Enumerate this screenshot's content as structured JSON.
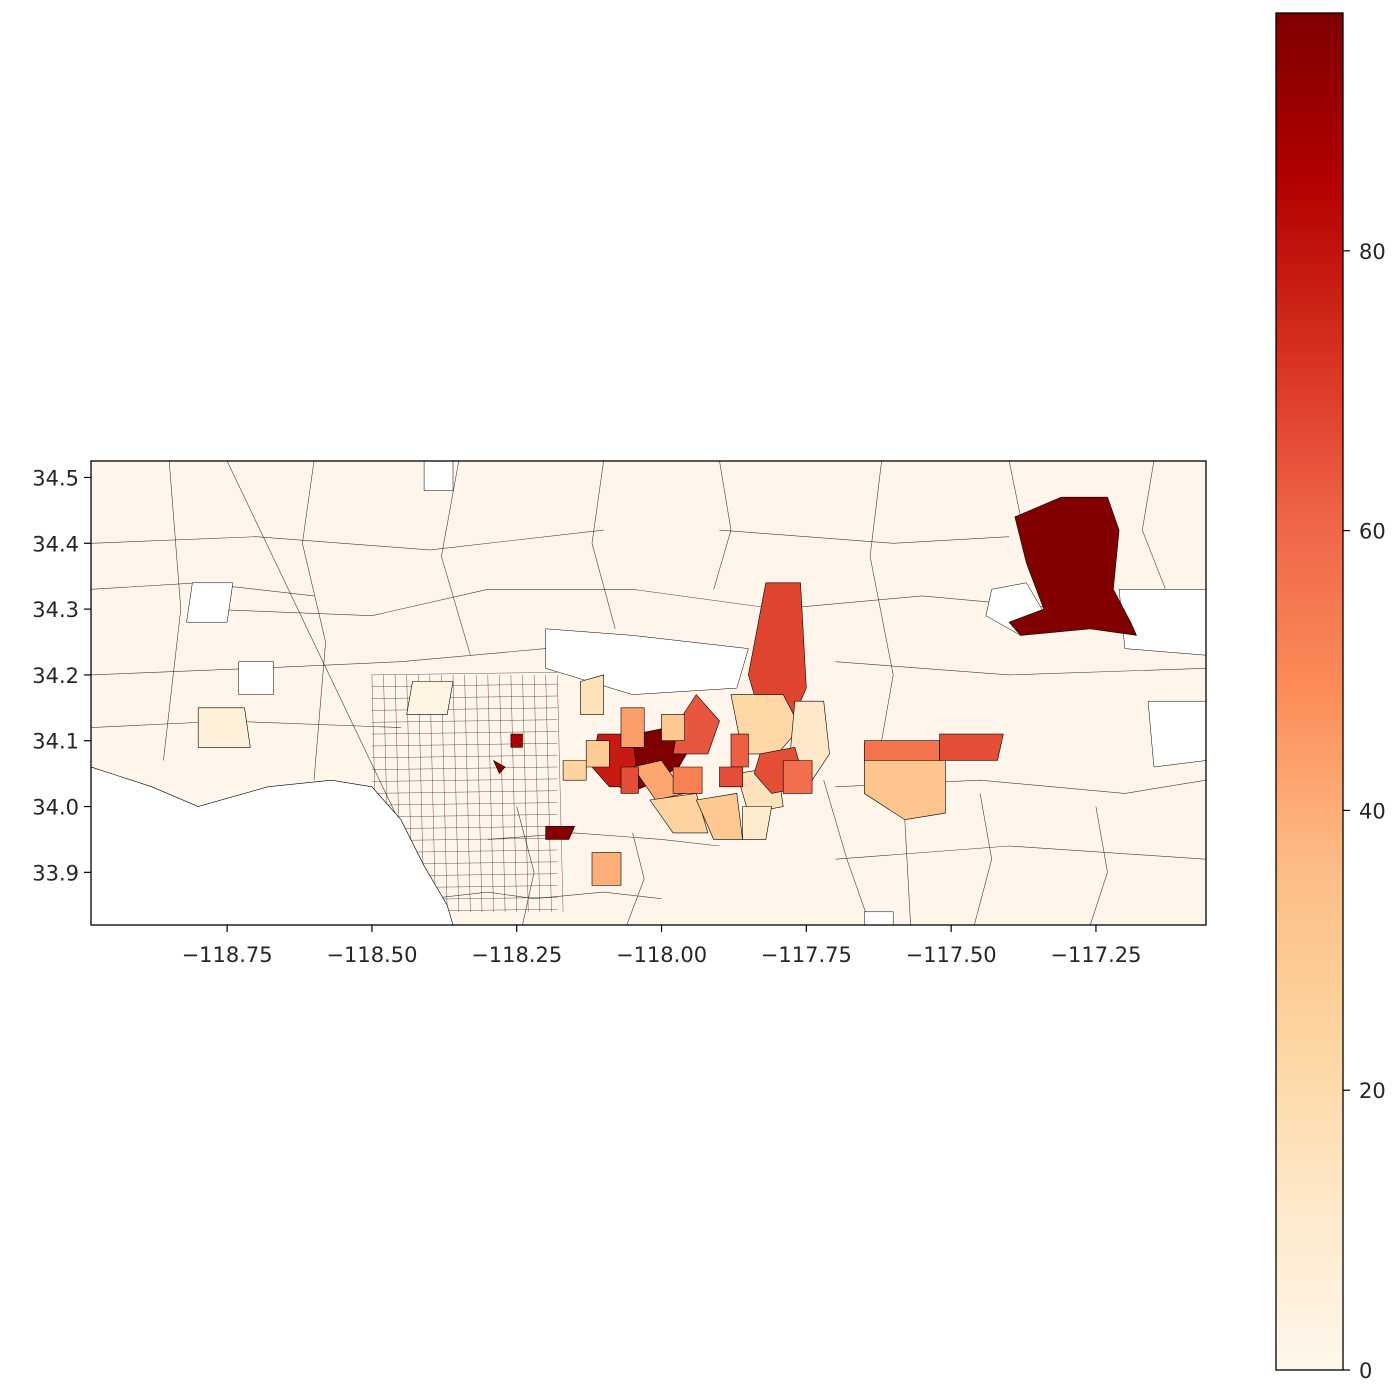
{
  "chart_data": {
    "type": "choropleth",
    "colormap": "OrRd",
    "basemap_color": "#fff5eb",
    "boundary_color": "#000000",
    "x_axis": {
      "lim": [
        -118.985,
        -117.06
      ],
      "ticks": [
        -118.75,
        -118.5,
        -118.25,
        -118.0,
        -117.75,
        -117.5,
        -117.25
      ],
      "tick_labels": [
        "−118.75",
        "−118.50",
        "−118.25",
        "−118.00",
        "−117.75",
        "−117.50",
        "−117.25"
      ]
    },
    "y_axis": {
      "lim": [
        33.82,
        34.525
      ],
      "ticks": [
        33.9,
        34.0,
        34.1,
        34.2,
        34.3,
        34.4,
        34.5
      ],
      "tick_labels": [
        "33.9",
        "34.0",
        "34.1",
        "34.2",
        "34.3",
        "34.4",
        "34.5"
      ]
    },
    "colorbar": {
      "vmin": 0,
      "vmax": 97,
      "ticks": [
        0,
        20,
        40,
        60,
        80
      ],
      "tick_labels": [
        "0",
        "20",
        "40",
        "60",
        "80"
      ]
    },
    "highlighted_regions": [
      {
        "lon": [
          -117.39,
          -117.31,
          -117.23,
          -117.21,
          -117.22,
          -117.19,
          -117.18,
          -117.26,
          -117.38,
          -117.4,
          -117.34,
          -117.37
        ],
        "lat": [
          34.44,
          34.47,
          34.47,
          34.42,
          34.33,
          34.28,
          34.26,
          34.27,
          34.26,
          34.28,
          34.3,
          34.37
        ],
        "value": 96
      },
      {
        "lon": [
          -118.1,
          -117.99,
          -117.95,
          -117.97,
          -118.03,
          -118.06,
          -118.11
        ],
        "lat": [
          34.1,
          34.12,
          34.09,
          34.06,
          34.03,
          34.02,
          34.06
        ],
        "value": 97
      },
      {
        "lon": [
          -117.97,
          -117.94,
          -117.9,
          -117.92,
          -117.98
        ],
        "lat": [
          34.13,
          34.17,
          34.13,
          34.08,
          34.08
        ],
        "value": 64
      },
      {
        "lon": [
          -117.82,
          -117.76,
          -117.75,
          -117.77,
          -117.83,
          -117.85
        ],
        "lat": [
          34.34,
          34.34,
          34.18,
          34.14,
          34.14,
          34.2
        ],
        "value": 68
      },
      {
        "lon": [
          -118.11,
          -118.05,
          -118.04,
          -118.09,
          -118.12
        ],
        "lat": [
          34.11,
          34.11,
          34.03,
          34.03,
          34.06
        ],
        "value": 78
      },
      {
        "lon": [
          -118.05,
          -118.0,
          -117.96,
          -118.01
        ],
        "lat": [
          34.06,
          34.07,
          34.02,
          34.01
        ],
        "value": 42
      },
      {
        "lon": [
          -118.02,
          -117.94,
          -117.92,
          -117.98
        ],
        "lat": [
          34.01,
          34.02,
          33.96,
          33.96
        ],
        "value": 24
      },
      {
        "lon": [
          -117.94,
          -117.87,
          -117.86,
          -117.91
        ],
        "lat": [
          34.01,
          34.02,
          33.95,
          33.95
        ],
        "value": 30
      },
      {
        "lon": [
          -117.87,
          -117.8,
          -117.79,
          -117.85
        ],
        "lat": [
          34.05,
          34.06,
          34.0,
          33.99
        ],
        "value": 16
      },
      {
        "lon": [
          -117.88,
          -117.79,
          -117.76,
          -117.8,
          -117.86
        ],
        "lat": [
          34.17,
          34.17,
          34.12,
          34.08,
          34.08
        ],
        "value": 22
      },
      {
        "lon": [
          -117.77,
          -117.72,
          -117.71,
          -117.74,
          -117.78
        ],
        "lat": [
          34.16,
          34.16,
          34.08,
          34.04,
          34.06
        ],
        "value": 12
      },
      {
        "lon": [
          -117.83,
          -117.77,
          -117.75,
          -117.81,
          -117.84
        ],
        "lat": [
          34.08,
          34.09,
          34.03,
          34.02,
          34.05
        ],
        "value": 66
      },
      {
        "lon": [
          -117.79,
          -117.74,
          -117.74,
          -117.79
        ],
        "lat": [
          34.07,
          34.07,
          34.02,
          34.02
        ],
        "value": 58
      },
      {
        "lon": [
          -117.88,
          -117.85,
          -117.85,
          -117.88
        ],
        "lat": [
          34.11,
          34.11,
          34.06,
          34.06
        ],
        "value": 62
      },
      {
        "lon": [
          -117.9,
          -117.86,
          -117.86,
          -117.9
        ],
        "lat": [
          34.06,
          34.06,
          34.03,
          34.03
        ],
        "value": 66
      },
      {
        "lon": [
          -117.98,
          -117.93,
          -117.93,
          -117.98
        ],
        "lat": [
          34.06,
          34.06,
          34.02,
          34.02
        ],
        "value": 52
      },
      {
        "lon": [
          -118.07,
          -118.03,
          -118.03,
          -118.07
        ],
        "lat": [
          34.15,
          34.15,
          34.09,
          34.09
        ],
        "value": 44
      },
      {
        "lon": [
          -118.0,
          -117.96,
          -117.96,
          -118.0
        ],
        "lat": [
          34.14,
          34.14,
          34.1,
          34.1
        ],
        "value": 30
      },
      {
        "lon": [
          -118.13,
          -118.09,
          -118.09,
          -118.13
        ],
        "lat": [
          34.1,
          34.1,
          34.06,
          34.06
        ],
        "value": 28
      },
      {
        "lon": [
          -118.14,
          -118.1,
          -118.1,
          -118.14
        ],
        "lat": [
          34.19,
          34.2,
          34.14,
          34.14
        ],
        "value": 16
      },
      {
        "lon": [
          -118.07,
          -118.04,
          -118.04,
          -118.07
        ],
        "lat": [
          34.06,
          34.06,
          34.02,
          34.02
        ],
        "value": 66
      },
      {
        "lon": [
          -118.17,
          -118.13,
          -118.13,
          -118.17
        ],
        "lat": [
          34.07,
          34.07,
          34.04,
          34.04
        ],
        "value": 24
      },
      {
        "lon": [
          -117.65,
          -117.51,
          -117.51,
          -117.58,
          -117.65
        ],
        "lat": [
          34.09,
          34.08,
          33.99,
          33.98,
          34.02
        ],
        "value": 32
      },
      {
        "lon": [
          -117.65,
          -117.52,
          -117.52,
          -117.65
        ],
        "lat": [
          34.1,
          34.1,
          34.07,
          34.07
        ],
        "value": 56
      },
      {
        "lon": [
          -117.52,
          -117.41,
          -117.42,
          -117.52
        ],
        "lat": [
          34.11,
          34.11,
          34.07,
          34.07
        ],
        "value": 66
      },
      {
        "lon": [
          -118.12,
          -118.07,
          -118.07,
          -118.12
        ],
        "lat": [
          33.93,
          33.93,
          33.88,
          33.88
        ],
        "value": 40
      },
      {
        "lon": [
          -118.2,
          -118.15,
          -118.16,
          -118.2
        ],
        "lat": [
          33.97,
          33.97,
          33.95,
          33.95
        ],
        "value": 95
      },
      {
        "lon": [
          -118.26,
          -118.24,
          -118.24,
          -118.26
        ],
        "lat": [
          34.11,
          34.11,
          34.09,
          34.09
        ],
        "value": 86
      },
      {
        "lon": [
          -118.29,
          -118.27,
          -118.28
        ],
        "lat": [
          34.07,
          34.06,
          34.05
        ],
        "value": 94
      },
      {
        "lon": [
          -118.8,
          -118.72,
          -118.71,
          -118.8
        ],
        "lat": [
          34.15,
          34.15,
          34.09,
          34.09
        ],
        "value": 6
      },
      {
        "lon": [
          -118.43,
          -118.36,
          -118.37,
          -118.44
        ],
        "lat": [
          34.19,
          34.19,
          34.14,
          34.14
        ],
        "value": 3
      },
      {
        "lon": [
          -117.86,
          -117.81,
          -117.82,
          -117.86
        ],
        "lat": [
          34.0,
          34.0,
          33.95,
          33.95
        ],
        "value": 10
      }
    ],
    "no_data_areas": [
      {
        "lon": [
          -118.2,
          -118.05,
          -117.85,
          -117.87,
          -118.05,
          -118.2
        ],
        "lat": [
          34.27,
          34.26,
          34.24,
          34.18,
          34.17,
          34.21
        ]
      },
      {
        "lon": [
          -117.43,
          -117.37,
          -117.33,
          -117.38,
          -117.44
        ],
        "lat": [
          34.33,
          34.34,
          34.28,
          34.26,
          34.29
        ]
      },
      {
        "lon": [
          -117.21,
          -117.06,
          -117.06,
          -117.2
        ],
        "lat": [
          34.33,
          34.33,
          34.23,
          34.24
        ]
      },
      {
        "lon": [
          -117.16,
          -117.06,
          -117.06,
          -117.15
        ],
        "lat": [
          34.16,
          34.16,
          34.07,
          34.06
        ]
      },
      {
        "lon": [
          -118.81,
          -118.74,
          -118.75,
          -118.82
        ],
        "lat": [
          34.34,
          34.34,
          34.28,
          34.28
        ]
      },
      {
        "lon": [
          -118.73,
          -118.67,
          -118.67,
          -118.73
        ],
        "lat": [
          34.22,
          34.22,
          34.17,
          34.17
        ]
      },
      {
        "lon": [
          -118.41,
          -118.36,
          -118.36,
          -118.41
        ],
        "lat": [
          34.53,
          34.53,
          34.48,
          34.48
        ]
      },
      {
        "lon": [
          -117.65,
          -117.6,
          -117.6,
          -117.65
        ],
        "lat": [
          33.84,
          33.84,
          33.82,
          33.82
        ]
      }
    ],
    "ocean_area": {
      "lon": [
        -118.985,
        -118.985,
        -118.95,
        -118.88,
        -118.8,
        -118.68,
        -118.57,
        -118.5,
        -118.45,
        -118.41,
        -118.37,
        -118.36
      ],
      "lat": [
        33.82,
        34.06,
        34.05,
        34.03,
        34.0,
        34.03,
        34.04,
        34.03,
        33.98,
        33.91,
        33.85,
        33.82
      ]
    },
    "boundary_lines": [
      {
        "lon": [
          -118.79,
          -118.5,
          -118.3,
          -118.05,
          -117.8,
          -117.55,
          -117.3,
          -117.06
        ],
        "lat": [
          34.3,
          34.29,
          34.33,
          34.33,
          34.3,
          34.32,
          34.3,
          34.3
        ]
      },
      {
        "lon": [
          -118.985,
          -118.7,
          -118.45,
          -118.2,
          -117.95
        ],
        "lat": [
          34.2,
          34.21,
          34.22,
          34.24,
          34.22
        ]
      },
      {
        "lon": [
          -117.7,
          -117.4,
          -117.06
        ],
        "lat": [
          34.22,
          34.2,
          34.21
        ]
      },
      {
        "lon": [
          -118.985,
          -118.7,
          -118.4,
          -118.1
        ],
        "lat": [
          34.4,
          34.41,
          34.39,
          34.42
        ]
      },
      {
        "lon": [
          -117.9,
          -117.6,
          -117.4
        ],
        "lat": [
          34.42,
          34.4,
          34.41
        ]
      },
      {
        "lon": [
          -117.7,
          -117.4,
          -117.06
        ],
        "lat": [
          33.92,
          33.94,
          33.92
        ]
      },
      {
        "lon": [
          -118.985,
          -118.75,
          -118.45
        ],
        "lat": [
          34.12,
          34.13,
          34.12
        ]
      },
      {
        "lon": [
          -117.7,
          -117.45,
          -117.2,
          -117.06
        ],
        "lat": [
          34.03,
          34.04,
          34.02,
          34.04
        ]
      },
      {
        "lon": [
          -118.6,
          -118.62,
          -118.58,
          -118.6
        ],
        "lat": [
          34.525,
          34.4,
          34.25,
          34.04
        ]
      },
      {
        "lon": [
          -118.85,
          -118.83,
          -118.86
        ],
        "lat": [
          34.525,
          34.3,
          34.07
        ]
      },
      {
        "lon": [
          -118.35,
          -118.38,
          -118.33
        ],
        "lat": [
          34.525,
          34.38,
          34.23
        ]
      },
      {
        "lon": [
          -118.1,
          -118.12,
          -118.08
        ],
        "lat": [
          34.525,
          34.4,
          34.27
        ]
      },
      {
        "lon": [
          -117.9,
          -117.88,
          -117.91
        ],
        "lat": [
          34.525,
          34.42,
          34.33
        ]
      },
      {
        "lon": [
          -117.62,
          -117.64,
          -117.6,
          -117.62
        ],
        "lat": [
          34.525,
          34.38,
          34.2,
          34.1
        ]
      },
      {
        "lon": [
          -117.4,
          -117.38
        ],
        "lat": [
          34.525,
          34.44
        ]
      },
      {
        "lon": [
          -117.15,
          -117.17,
          -117.13
        ],
        "lat": [
          34.525,
          34.42,
          34.33
        ]
      },
      {
        "lon": [
          -117.45,
          -117.43,
          -117.46
        ],
        "lat": [
          34.02,
          33.92,
          33.82
        ]
      },
      {
        "lon": [
          -117.25,
          -117.23,
          -117.26
        ],
        "lat": [
          34.0,
          33.9,
          33.82
        ]
      },
      {
        "lon": [
          -117.58,
          -117.57
        ],
        "lat": [
          33.98,
          33.82
        ]
      },
      {
        "lon": [
          -117.72,
          -117.68,
          -117.64
        ],
        "lat": [
          34.04,
          33.92,
          33.82
        ]
      },
      {
        "lon": [
          -118.4,
          -118.3,
          -118.22,
          -118.1,
          -118.0
        ],
        "lat": [
          33.86,
          33.87,
          33.86,
          33.87,
          33.86
        ]
      },
      {
        "lon": [
          -118.3,
          -118.15,
          -118.0,
          -117.9
        ],
        "lat": [
          33.95,
          33.96,
          33.95,
          33.94
        ]
      },
      {
        "lon": [
          -118.25,
          -118.22,
          -118.24
        ],
        "lat": [
          34.0,
          33.9,
          33.82
        ]
      },
      {
        "lon": [
          -118.05,
          -118.03,
          -118.06
        ],
        "lat": [
          33.96,
          33.89,
          33.82
        ]
      },
      {
        "lon": [
          -118.75,
          -118.4
        ],
        "lat": [
          34.525,
          33.88
        ]
      },
      {
        "lon": [
          -118.985,
          -118.8,
          -118.6
        ],
        "lat": [
          34.33,
          34.34,
          34.32
        ]
      }
    ],
    "city_grid": {
      "lon_range": [
        -118.5,
        -118.18
      ],
      "lat_range": [
        33.84,
        34.2
      ],
      "lon_step": 0.02,
      "lat_step": 0.018
    }
  }
}
